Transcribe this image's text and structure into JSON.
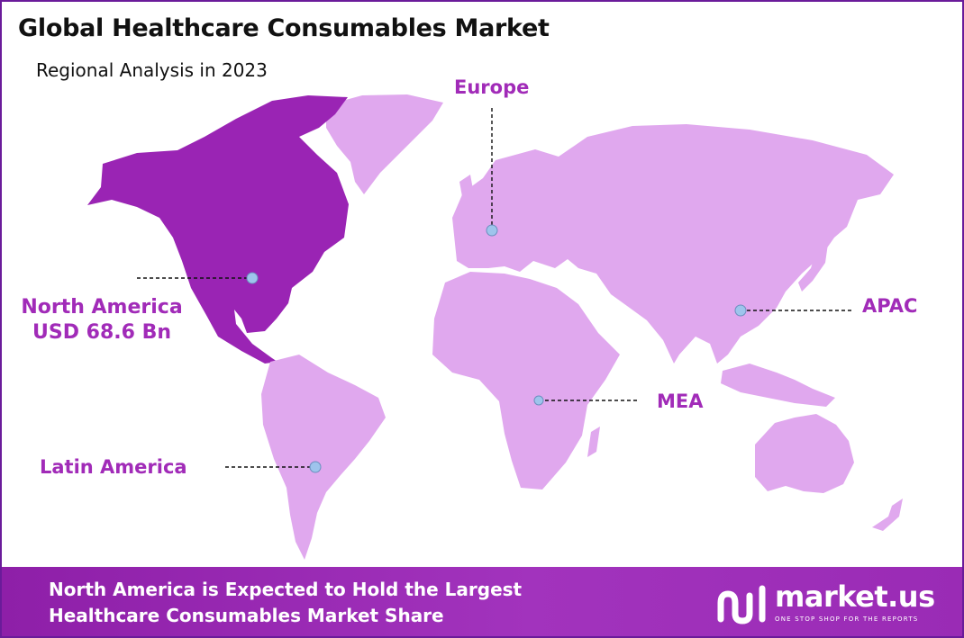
{
  "header": {
    "title": "Global Healthcare Consumables Market",
    "subtitle": "Regional Analysis in 2023"
  },
  "regions": {
    "north_america": {
      "name": "North America",
      "value": "USD 68.6 Bn",
      "highlighted": true
    },
    "europe": {
      "name": "Europe"
    },
    "apac": {
      "name": "APAC"
    },
    "mea": {
      "name": "MEA"
    },
    "latin_america": {
      "name": "Latin America"
    }
  },
  "colors": {
    "highlight_region": "#9a24b4",
    "other_regions": "#e0a8ee",
    "label_text": "#a12bb8",
    "marker": "#9ec4ec",
    "footer_band": "#9a2bb5"
  },
  "footer": {
    "line1": "North America is Expected to Hold the Largest",
    "line2": "Healthcare Consumables Market Share"
  },
  "brand": {
    "logo_icon": "market-us-logo-icon",
    "name": "market.us",
    "tagline": "ONE STOP SHOP FOR THE REPORTS"
  }
}
